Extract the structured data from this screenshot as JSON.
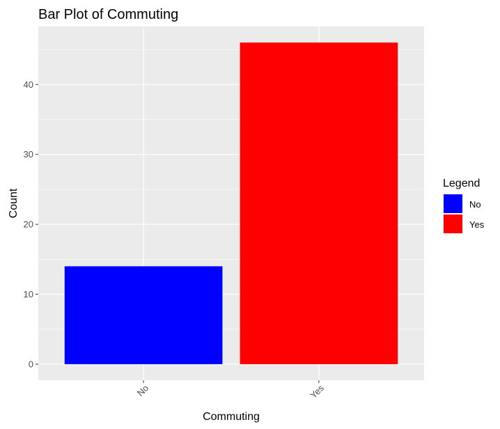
{
  "chart_data": {
    "type": "bar",
    "title": "Bar Plot of Commuting",
    "xlabel": "Commuting",
    "ylabel": "Count",
    "categories": [
      "No",
      "Yes"
    ],
    "values": [
      14,
      46
    ],
    "colors": [
      "#0000ff",
      "#ff0000"
    ],
    "ylim": [
      -2.3,
      48.3
    ],
    "yticks": [
      "0",
      "10",
      "20",
      "30",
      "40"
    ],
    "ytick_values": [
      0,
      10,
      20,
      30,
      40
    ],
    "grid": true,
    "panel_background": "#ebebeb",
    "x_tick_rotation": "45 degrees",
    "legend": {
      "title": "Legend",
      "position": "right",
      "entries": [
        {
          "label": "No",
          "color": "#0000ff"
        },
        {
          "label": "Yes",
          "color": "#ff0000"
        }
      ]
    }
  }
}
